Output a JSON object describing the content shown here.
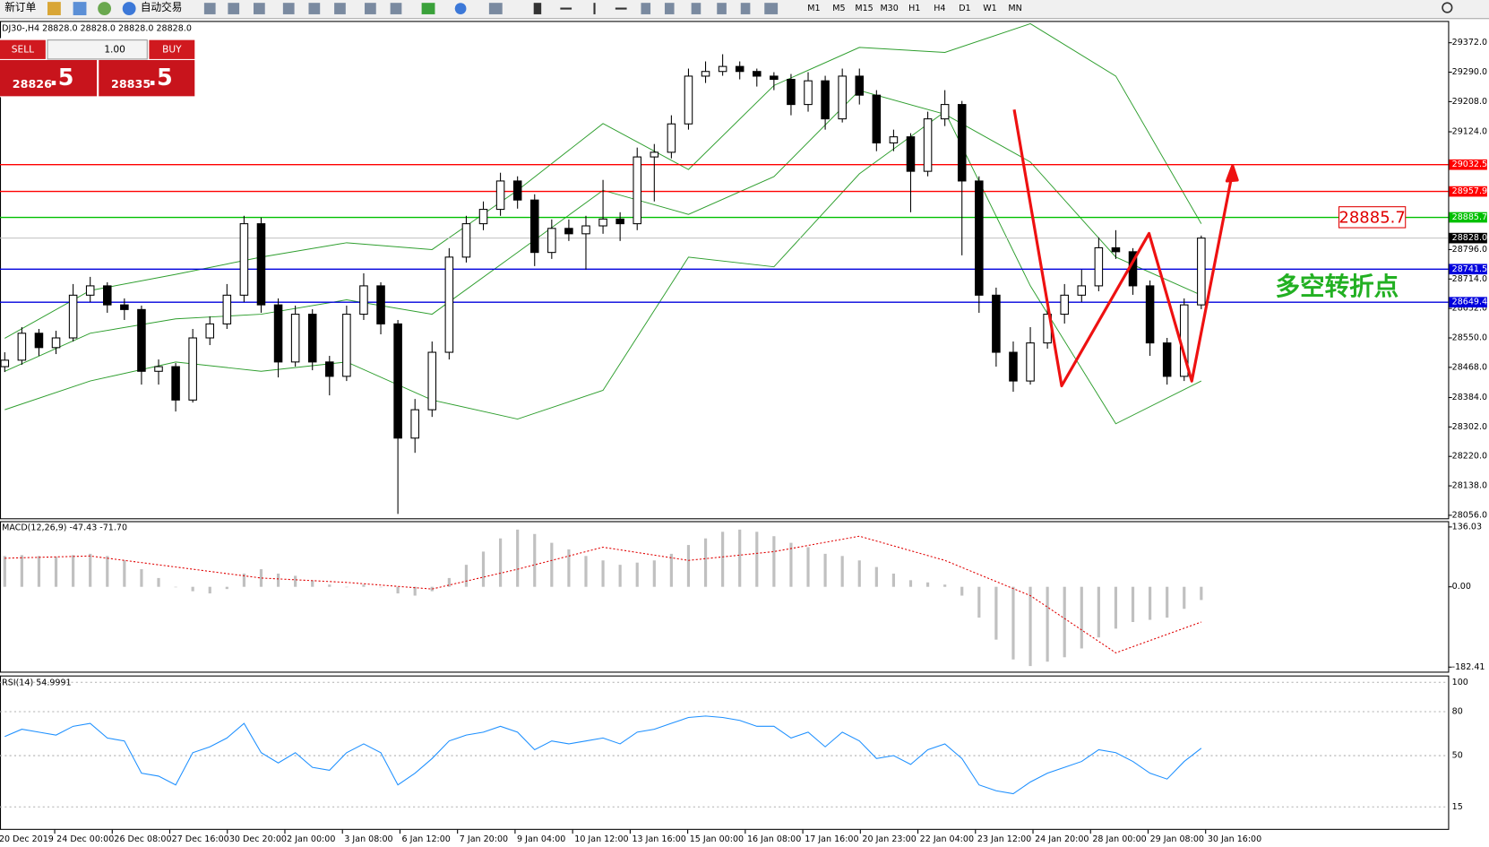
{
  "toolbar": {
    "new_order": "新订单",
    "auto_trading": "自动交易",
    "timeframes": [
      "M1",
      "M5",
      "M15",
      "M30",
      "H1",
      "H4",
      "D1",
      "W1",
      "MN"
    ]
  },
  "trade_panel": {
    "sell": "SELL",
    "lot": "1.00",
    "buy": "BUY",
    "bid_main": "28826",
    "bid_frac": ".5",
    "ask_main": "28835",
    "ask_frac": ".5"
  },
  "chart": {
    "header": "DJ30-,H4  28828.0 28828.0 28828.0 28828.0",
    "ylim": [
      28045,
      29430
    ],
    "yticks": [
      {
        "value": 29372,
        "label": "29372.0"
      },
      {
        "value": 29290,
        "label": "29290.0"
      },
      {
        "value": 29208,
        "label": "29208.0"
      },
      {
        "value": 29124,
        "label": "29124.0"
      },
      {
        "value": 28796,
        "label": "28796.0"
      },
      {
        "value": 28714,
        "label": "28714.0"
      },
      {
        "value": 28632,
        "label": "28632.0"
      },
      {
        "value": 28550,
        "label": "28550.0"
      },
      {
        "value": 28468,
        "label": "28468.0"
      },
      {
        "value": 28384,
        "label": "28384.0"
      },
      {
        "value": 28302,
        "label": "28302.0"
      },
      {
        "value": 28220,
        "label": "28220.0"
      },
      {
        "value": 28138,
        "label": "28138.0"
      },
      {
        "value": 28056,
        "label": "28056.0"
      }
    ],
    "candles": [
      [
        28470,
        28510,
        28455,
        28488
      ],
      [
        28488,
        28580,
        28475,
        28563
      ],
      [
        28563,
        28575,
        28500,
        28523
      ],
      [
        28523,
        28570,
        28505,
        28550
      ],
      [
        28550,
        28700,
        28540,
        28669
      ],
      [
        28669,
        28720,
        28650,
        28695
      ],
      [
        28695,
        28705,
        28620,
        28642
      ],
      [
        28642,
        28660,
        28600,
        28629
      ],
      [
        28629,
        28640,
        28420,
        28457
      ],
      [
        28457,
        28490,
        28420,
        28470
      ],
      [
        28470,
        28480,
        28345,
        28377
      ],
      [
        28377,
        28575,
        28370,
        28550
      ],
      [
        28550,
        28610,
        28530,
        28589
      ],
      [
        28589,
        28700,
        28575,
        28669
      ],
      [
        28669,
        28890,
        28650,
        28868
      ],
      [
        28868,
        28885,
        28620,
        28642
      ],
      [
        28642,
        28660,
        28440,
        28483
      ],
      [
        28483,
        28640,
        28470,
        28616
      ],
      [
        28616,
        28630,
        28460,
        28483
      ],
      [
        28483,
        28500,
        28390,
        28443
      ],
      [
        28443,
        28640,
        28430,
        28616
      ],
      [
        28616,
        28730,
        28600,
        28695
      ],
      [
        28695,
        28705,
        28560,
        28589
      ],
      [
        28589,
        28600,
        28060,
        28271
      ],
      [
        28271,
        28380,
        28230,
        28350
      ],
      [
        28350,
        28540,
        28330,
        28510
      ],
      [
        28510,
        28800,
        28490,
        28775
      ],
      [
        28775,
        28890,
        28760,
        28868
      ],
      [
        28868,
        28930,
        28850,
        28908
      ],
      [
        28908,
        29010,
        28890,
        28987
      ],
      [
        28987,
        29000,
        28910,
        28934
      ],
      [
        28934,
        28950,
        28750,
        28788
      ],
      [
        28788,
        28880,
        28770,
        28855
      ],
      [
        28855,
        28880,
        28820,
        28840
      ],
      [
        28840,
        28890,
        28740,
        28862
      ],
      [
        28862,
        28990,
        28840,
        28881
      ],
      [
        28881,
        28900,
        28820,
        28868
      ],
      [
        28868,
        29080,
        28850,
        29054
      ],
      [
        29054,
        29090,
        28930,
        29067
      ],
      [
        29067,
        29170,
        29050,
        29146
      ],
      [
        29146,
        29300,
        29130,
        29279
      ],
      [
        29279,
        29320,
        29260,
        29292
      ],
      [
        29292,
        29340,
        29280,
        29306
      ],
      [
        29306,
        29320,
        29270,
        29292
      ],
      [
        29292,
        29300,
        29250,
        29279
      ],
      [
        29279,
        29290,
        29240,
        29270
      ],
      [
        29270,
        29285,
        29170,
        29200
      ],
      [
        29200,
        29290,
        29180,
        29266
      ],
      [
        29266,
        29280,
        29130,
        29160
      ],
      [
        29160,
        29300,
        29150,
        29279
      ],
      [
        29279,
        29300,
        29200,
        29226
      ],
      [
        29226,
        29240,
        29070,
        29093
      ],
      [
        29093,
        29130,
        29070,
        29110
      ],
      [
        29110,
        29120,
        28900,
        29014
      ],
      [
        29014,
        29180,
        29000,
        29160
      ],
      [
        29160,
        29240,
        29140,
        29200
      ],
      [
        29200,
        29210,
        28780,
        28987
      ],
      [
        28987,
        29000,
        28620,
        28669
      ],
      [
        28669,
        28690,
        28470,
        28510
      ],
      [
        28510,
        28540,
        28400,
        28430
      ],
      [
        28430,
        28580,
        28420,
        28536
      ],
      [
        28536,
        28640,
        28520,
        28616
      ],
      [
        28616,
        28700,
        28590,
        28669
      ],
      [
        28669,
        28740,
        28650,
        28695
      ],
      [
        28695,
        28830,
        28680,
        28801
      ],
      [
        28801,
        28850,
        28770,
        28790
      ],
      [
        28790,
        28800,
        28670,
        28695
      ],
      [
        28695,
        28710,
        28500,
        28536
      ],
      [
        28536,
        28550,
        28420,
        28443
      ],
      [
        28443,
        28660,
        28430,
        28642
      ],
      [
        28642,
        28835,
        28630,
        28828
      ]
    ],
    "bollinger": {
      "color": "#2e9e2e",
      "upper": [
        28549,
        28682,
        28727,
        28775,
        28815,
        28796,
        28961,
        29147,
        29019,
        29253,
        29359,
        29345,
        29425,
        29279,
        28868
      ],
      "middle": [
        28457,
        28563,
        28603,
        28616,
        28656,
        28616,
        28788,
        28961,
        28894,
        28999,
        29239,
        29173,
        29040,
        28775,
        28669
      ],
      "lower": [
        28350,
        28430,
        28483,
        28457,
        28483,
        28377,
        28324,
        28404,
        28775,
        28748,
        29007,
        29180,
        28695,
        28311,
        28430
      ]
    },
    "levels": [
      {
        "value": 29032.5,
        "label": "29032.5",
        "color": "#ff0000"
      },
      {
        "value": 28957.9,
        "label": "28957.9",
        "color": "#ff0000"
      },
      {
        "value": 28885.7,
        "label": "28885.7",
        "color": "#00c000"
      },
      {
        "value": 28741.5,
        "label": "28741.5",
        "color": "#0000dd"
      },
      {
        "value": 28649.4,
        "label": "28649.4",
        "color": "#0000dd"
      }
    ],
    "current": {
      "value": 28828,
      "label": "28828.0"
    },
    "annotation_box": "28885.7",
    "annotation_text": "多空转折点"
  },
  "macd": {
    "label": "MACD(12,26,9) -47.43 -71.70",
    "ylim": [
      -195,
      147
    ],
    "yticks": [
      {
        "value": 136.03,
        "label": "136.03"
      },
      {
        "value": 0,
        "label": "0.00"
      },
      {
        "value": -182.41,
        "label": "-182.41"
      }
    ],
    "histogram": [
      70,
      72,
      70,
      68,
      72,
      75,
      70,
      60,
      40,
      20,
      0,
      -10,
      -15,
      -5,
      30,
      40,
      30,
      25,
      15,
      5,
      0,
      5,
      0,
      -15,
      -20,
      -10,
      20,
      50,
      80,
      110,
      130,
      120,
      100,
      85,
      70,
      60,
      50,
      55,
      60,
      75,
      95,
      110,
      125,
      130,
      125,
      115,
      100,
      90,
      75,
      70,
      60,
      45,
      30,
      15,
      10,
      5,
      -20,
      -70,
      -120,
      -165,
      -180,
      -170,
      -160,
      -140,
      -115,
      -95,
      -80,
      -75,
      -70,
      -50,
      -30
    ],
    "signal": [
      65,
      70,
      45,
      20,
      10,
      -5,
      40,
      90,
      60,
      80,
      115,
      60,
      -20,
      -150,
      -80
    ]
  },
  "rsi": {
    "label": "RSI(14) 54.9991",
    "ylim": [
      0,
      104
    ],
    "yticks": [
      100,
      80,
      50,
      15
    ],
    "values": [
      63,
      68,
      66,
      64,
      70,
      72,
      62,
      60,
      38,
      36,
      30,
      52,
      56,
      62,
      72,
      52,
      45,
      52,
      42,
      40,
      52,
      58,
      52,
      30,
      38,
      48,
      60,
      64,
      66,
      70,
      66,
      54,
      60,
      58,
      60,
      62,
      58,
      66,
      68,
      72,
      76,
      77,
      76,
      74,
      70,
      70,
      62,
      66,
      56,
      66,
      60,
      48,
      50,
      44,
      54,
      58,
      48,
      30,
      26,
      24,
      32,
      38,
      42,
      46,
      54,
      52,
      46,
      38,
      34,
      46,
      55
    ]
  },
  "time_axis": [
    "20 Dec 2019",
    "24 Dec 00:00",
    "26 Dec 08:00",
    "27 Dec 16:00",
    "30 Dec 20:00",
    "2 Jan 00:00",
    "3 Jan 08:00",
    "6 Jan 12:00",
    "7 Jan 20:00",
    "9 Jan 04:00",
    "10 Jan 12:00",
    "13 Jan 16:00",
    "15 Jan 00:00",
    "16 Jan 08:00",
    "17 Jan 16:00",
    "20 Jan 23:00",
    "22 Jan 04:00",
    "23 Jan 12:00",
    "24 Jan 20:00",
    "28 Jan 00:00",
    "29 Jan 08:00",
    "30 Jan 16:00"
  ]
}
